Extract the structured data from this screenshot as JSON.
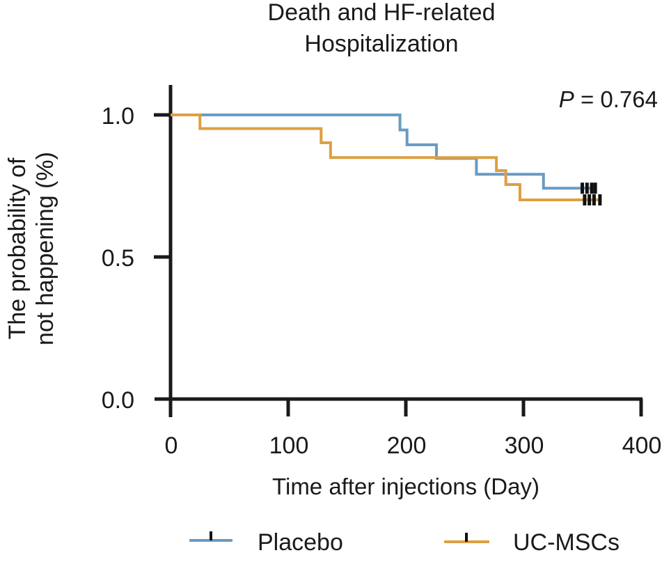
{
  "figure": {
    "title_line1": "Death and HF-related",
    "title_line2": "Hospitalization",
    "pvalue_symbol": "P",
    "pvalue_rest": " = 0.764"
  },
  "axes": {
    "x_title": "Time after injections (Day)",
    "y_title_line1": "The probability of",
    "y_title_line2": "not happening (%)",
    "x_ticks": [
      0,
      100,
      200,
      300,
      400
    ],
    "y_tick_labels": [
      "0.0",
      "0.5",
      "1.0"
    ]
  },
  "legend": [
    {
      "label": "Placebo",
      "color": "#689bc3"
    },
    {
      "label": "UC-MSCs",
      "color": "#de9f42"
    }
  ],
  "chart_data": {
    "type": "line",
    "subtype": "kaplan-meier-step",
    "title": "Death and HF-related Hospitalization",
    "xlabel": "Time after injections (Day)",
    "ylabel": "The probability of not happening (%)",
    "annotation": "P = 0.764",
    "xlim": [
      0,
      400
    ],
    "ylim": [
      0.0,
      1.05
    ],
    "grid": false,
    "legend_position": "bottom",
    "series": [
      {
        "name": "Placebo",
        "color": "#689bc3",
        "steps": [
          [
            0,
            1.0
          ],
          [
            195,
            0.947
          ],
          [
            201,
            0.895
          ],
          [
            226,
            0.847
          ],
          [
            260,
            0.791
          ],
          [
            317,
            0.742
          ]
        ],
        "end_day": 362,
        "final_probability": 0.742,
        "censor_days": [
          350,
          354,
          358,
          361
        ]
      },
      {
        "name": "UC-MSCs",
        "color": "#de9f42",
        "steps": [
          [
            0,
            1.0
          ],
          [
            25,
            0.952
          ],
          [
            128,
            0.902
          ],
          [
            136,
            0.85
          ],
          [
            277,
            0.804
          ],
          [
            285,
            0.755
          ],
          [
            297,
            0.701
          ]
        ],
        "end_day": 366,
        "final_probability": 0.701,
        "censor_days": [
          352,
          356,
          360,
          365
        ]
      }
    ]
  }
}
